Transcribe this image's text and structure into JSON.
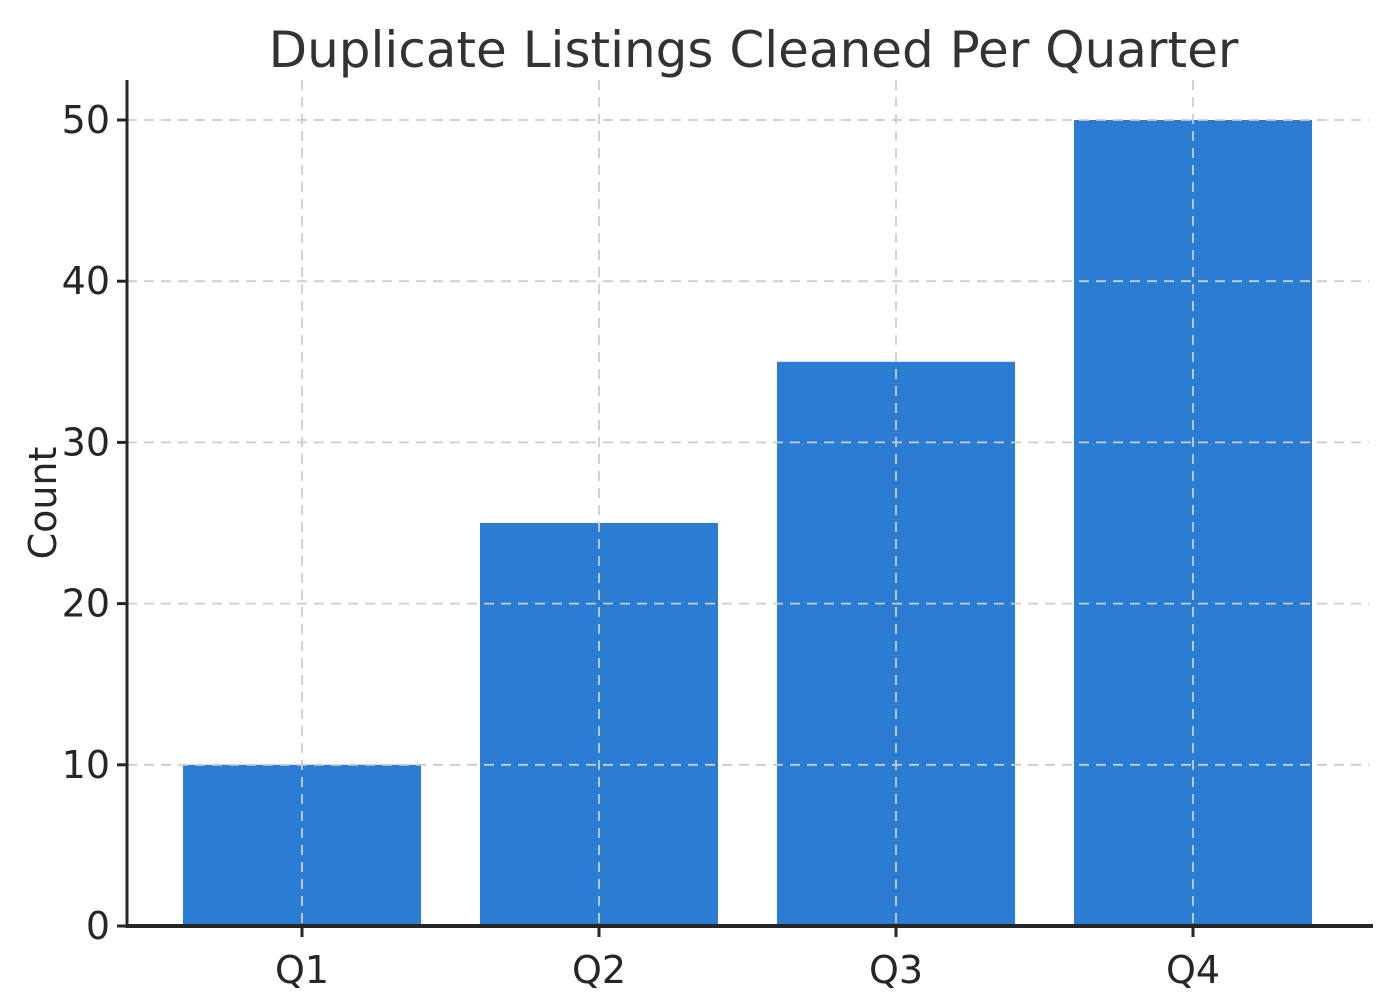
{
  "figure": {
    "background": "#ffffff"
  },
  "chart_data": {
    "type": "bar",
    "title": "Duplicate Listings Cleaned Per Quarter",
    "categories": [
      "Q1",
      "Q2",
      "Q3",
      "Q4"
    ],
    "values": [
      10,
      25,
      35,
      50
    ],
    "xlabel": "",
    "ylabel": "Count",
    "yticks": [
      0,
      10,
      20,
      30,
      40,
      50
    ],
    "ylim": [
      0,
      52.5
    ],
    "grid": true,
    "grid_style": "dashed",
    "legend": "none",
    "colors": {
      "bar": "#2a7dd2",
      "grid": "#cccccc",
      "axis": "#262626",
      "tick_label": "#262626",
      "title": "#333333"
    }
  }
}
